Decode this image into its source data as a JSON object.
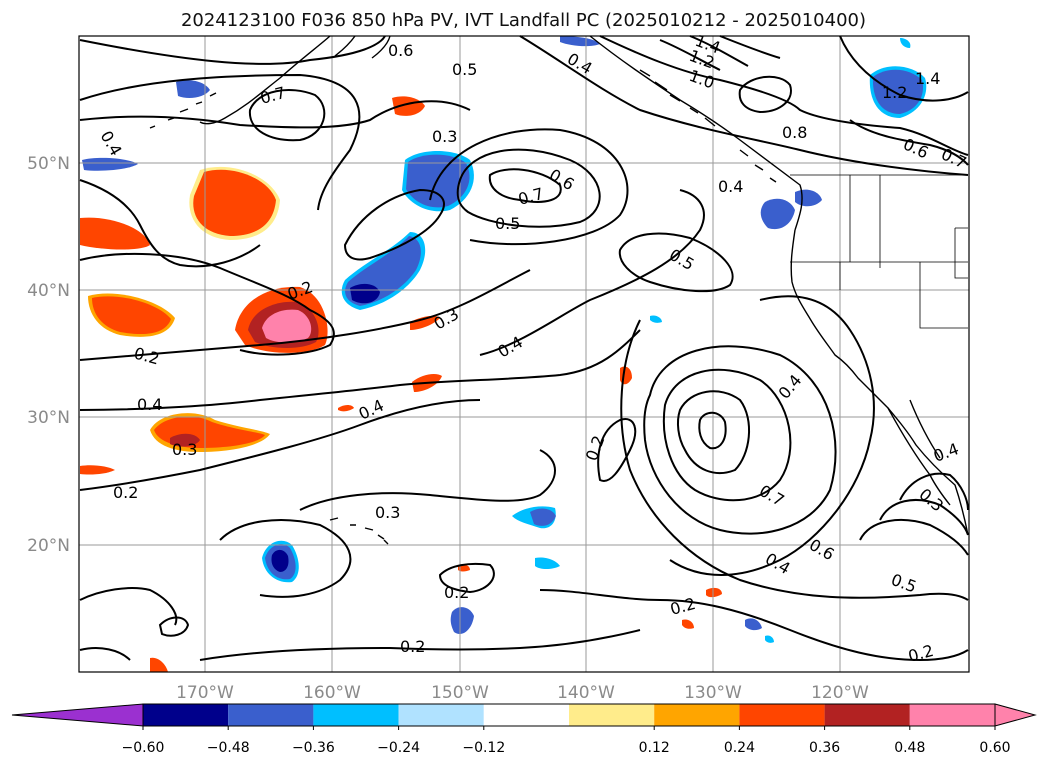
{
  "title": "2024123100 F036 850 hPa PV, IVT Landfall PC (2025010212 - 2025010400)",
  "axes": {
    "lon_labels": [
      "170°W",
      "160°W",
      "150°W",
      "140°W",
      "130°W",
      "120°W"
    ],
    "lat_labels": [
      "50°N",
      "40°N",
      "30°N",
      "20°N"
    ]
  },
  "colorbar": {
    "ticks": [
      "−0.60",
      "−0.48",
      "−0.36",
      "−0.24",
      "−0.12",
      "0.12",
      "0.24",
      "0.36",
      "0.48",
      "0.60"
    ],
    "colors": {
      "under": "#9b30d0",
      "bins": [
        "#00008b",
        "#3a5fcd",
        "#00bfff",
        "#b0e2ff",
        "#ffffff",
        "#ffec8b",
        "#ffa500",
        "#ff4500",
        "#b22222",
        "#ff82ab"
      ],
      "over": "#ff82ab"
    }
  },
  "contour_labels": [
    "0.6",
    "0.5",
    "0.7",
    "0.4",
    "0.3",
    "0.6",
    "0.7",
    "0.5",
    "0.4",
    "1.4",
    "1.2",
    "1.0",
    "0.8",
    "0.4",
    "1.4",
    "1.2",
    "0.6",
    "0.7",
    "0.5",
    "0.2",
    "0.3",
    "0.4",
    "0.2",
    "0.4",
    "0.3",
    "0.4",
    "0.2",
    "0.4",
    "0.7",
    "0.6",
    "0.4",
    "0.5",
    "0.3",
    "0.2",
    "0.2",
    "0.2",
    "0.2",
    "0.4",
    "0.3",
    "0.2"
  ]
}
